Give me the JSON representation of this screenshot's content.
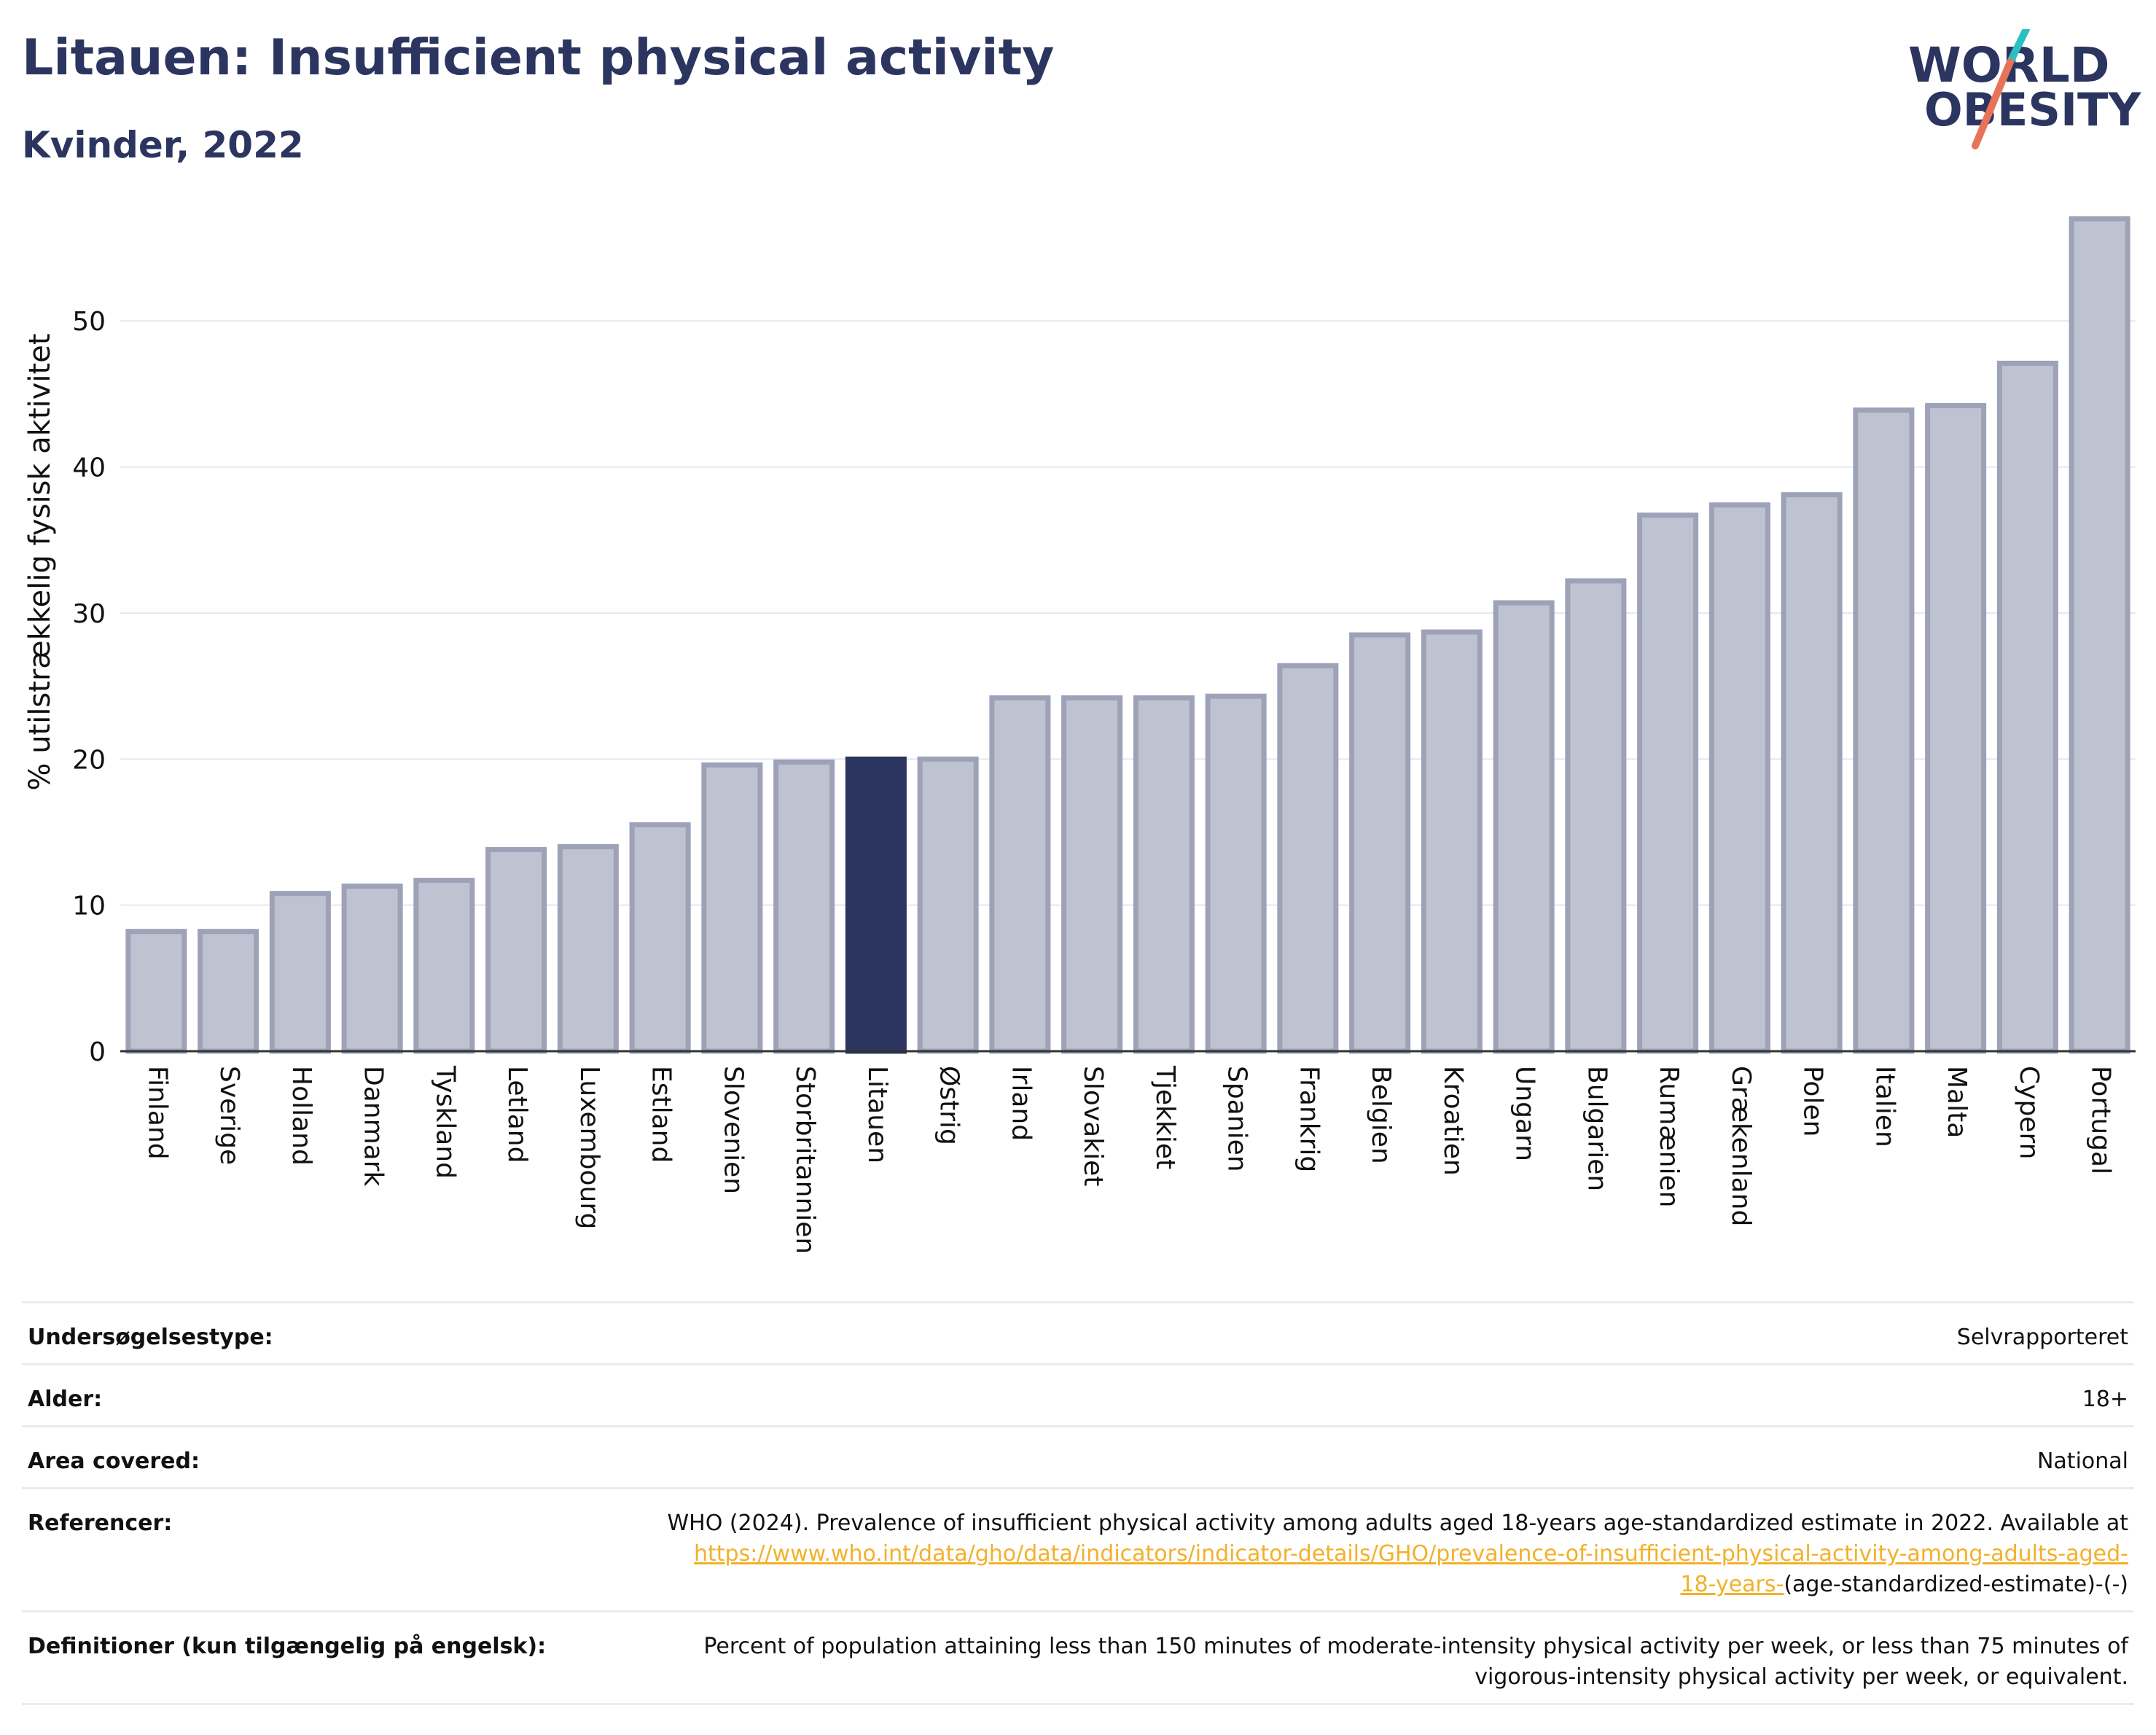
{
  "header": {
    "title": "Litauen: Insufficient physical activity",
    "subtitle": "Kvinder, 2022"
  },
  "logo": {
    "line1": "WORLD",
    "line2": "OBESITY"
  },
  "colors": {
    "title": "#2b3560",
    "bar_fill": "#bfc2d0",
    "bar_stroke": "#9da2b8",
    "highlight": "#2b3560",
    "grid": "#e6e8f0",
    "link": "#f2b12a",
    "logo_teal": "#2bbfc0",
    "logo_coral": "#e8735a"
  },
  "chart_data": {
    "type": "bar",
    "ylabel": "% utilstrækkelig fysisk aktivitet",
    "ylim": [
      0,
      57
    ],
    "yticks": [
      0,
      10,
      20,
      30,
      40,
      50
    ],
    "grid": true,
    "highlight_category": "Litauen",
    "categories": [
      "Finland",
      "Sverige",
      "Holland",
      "Danmark",
      "Tyskland",
      "Letland",
      "Luxembourg",
      "Estland",
      "Slovenien",
      "Storbritannien",
      "Litauen",
      "Østrig",
      "Irland",
      "Slovakiet",
      "Tjekkiet",
      "Spanien",
      "Frankrig",
      "Belgien",
      "Kroatien",
      "Ungarn",
      "Bulgarien",
      "Rumænien",
      "Grækenland",
      "Polen",
      "Italien",
      "Malta",
      "Cypern",
      "Portugal"
    ],
    "values": [
      8.2,
      8.2,
      10.8,
      11.3,
      11.7,
      13.8,
      14.0,
      15.5,
      19.6,
      19.8,
      20.0,
      20.0,
      24.2,
      24.2,
      24.2,
      24.3,
      26.4,
      28.5,
      28.7,
      30.7,
      32.2,
      36.7,
      37.4,
      38.1,
      43.9,
      44.2,
      47.1,
      57.0
    ]
  },
  "info": [
    {
      "label": "Undersøgelsestype:",
      "value": "Selvrapporteret"
    },
    {
      "label": "Alder:",
      "value": "18+"
    },
    {
      "label": "Area covered:",
      "value": "National"
    },
    {
      "label": "Referencer:",
      "value_prefix": "WHO (2024). Prevalence of insufficient physical activity among adults aged 18-years age-standardized estimate in 2022. Available at",
      "link_line1": "https://www.who.int/data/gho/data/indicators/indicator-details/GHO/prevalence-of-insufficient-physical-activity-among-adults-aged-",
      "link_line2": "18-years-",
      "value_suffix": "(age-standardized-estimate)-(-)"
    },
    {
      "label": "Definitioner (kun tilgængelig på engelsk):",
      "value_line1": "Percent of population attaining less than 150 minutes of moderate-intensity physical activity per week, or less than 75 minutes of",
      "value_line2": "vigorous-intensity physical activity per week, or equivalent."
    }
  ]
}
